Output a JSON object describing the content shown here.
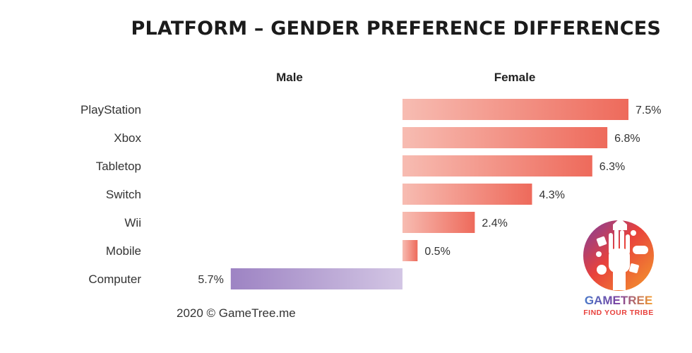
{
  "chart_data": {
    "type": "bar",
    "orientation": "diverging-horizontal",
    "title": "PLATFORM – GENDER PREFERENCE DIFFERENCES",
    "column_headers": {
      "left": "Male",
      "right": "Female"
    },
    "categories": [
      "PlayStation",
      "Xbox",
      "Tabletop",
      "Switch",
      "Wii",
      "Mobile",
      "Computer"
    ],
    "series": [
      {
        "name": "Female",
        "values": [
          7.5,
          6.8,
          6.3,
          4.3,
          2.4,
          0.5,
          null
        ],
        "labels": [
          "7.5%",
          "6.8%",
          "6.3%",
          "4.3%",
          "2.4%",
          "0.5%",
          ""
        ]
      },
      {
        "name": "Male",
        "values": [
          null,
          null,
          null,
          null,
          null,
          null,
          5.7
        ],
        "labels": [
          "",
          "",
          "",
          "",
          "",
          "",
          "5.7%"
        ]
      }
    ],
    "value_unit": "%",
    "xlim": [
      -7.5,
      7.5
    ],
    "colors": {
      "female_light": "#f7bcb2",
      "female_dark": "#ee6a5b",
      "male_light": "#d3c6e4",
      "male_dark": "#9d83c3"
    },
    "footer": "2020 © GameTree.me"
  },
  "logo": {
    "name": "GAMETREE",
    "tagline": "FIND YOUR TRIBE",
    "colors": {
      "purple": "#7b3fa0",
      "red": "#e8413c",
      "orange": "#f49a2c",
      "blue": "#4a78c8"
    }
  }
}
